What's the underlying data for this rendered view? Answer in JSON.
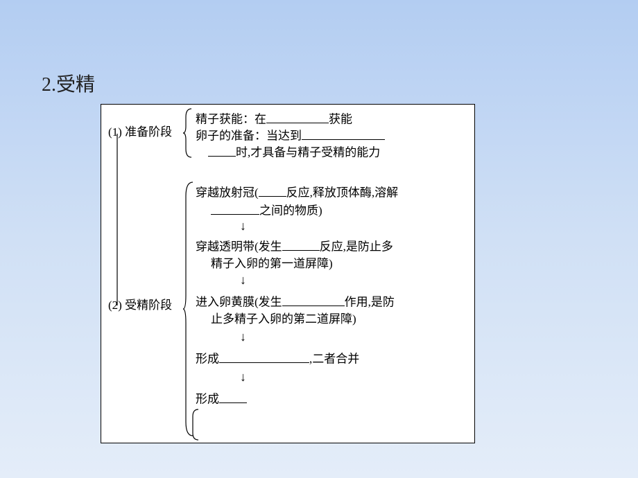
{
  "title": "2.受精",
  "prep": {
    "label": "(1) 准备阶段",
    "line1_a": "精子获能：在",
    "line1_b": "获能",
    "line2_a": "卵子的准备：当达到",
    "line3_a": "时,才具备与精子受精的能力"
  },
  "fert": {
    "label": "(2) 受精阶段",
    "step1_a": "穿越放射冠(",
    "step1_b": "反应,释放顶体酶,溶解",
    "step1_c": "之间的物质)",
    "step2_a": "穿越透明带(发生",
    "step2_b": "反应,是防止多",
    "step2_c": "精子入卵的第一道屏障)",
    "step3_a": "进入卵黄膜(发生",
    "step3_b": "作用,是防",
    "step3_c": "止多精子入卵的第二道屏障)",
    "step4_a": "形成",
    "step4_b": ",二者合并",
    "step5_a": "形成"
  },
  "blanks": {
    "b1": 90,
    "b2": 120,
    "b3": 40,
    "b4": 40,
    "b5": 70,
    "b6": 54,
    "b7": 90,
    "b8": 130,
    "b9": 40
  },
  "arrow": "↓",
  "layout": {
    "line_color": "#000000",
    "stroke_width": 1.2
  }
}
